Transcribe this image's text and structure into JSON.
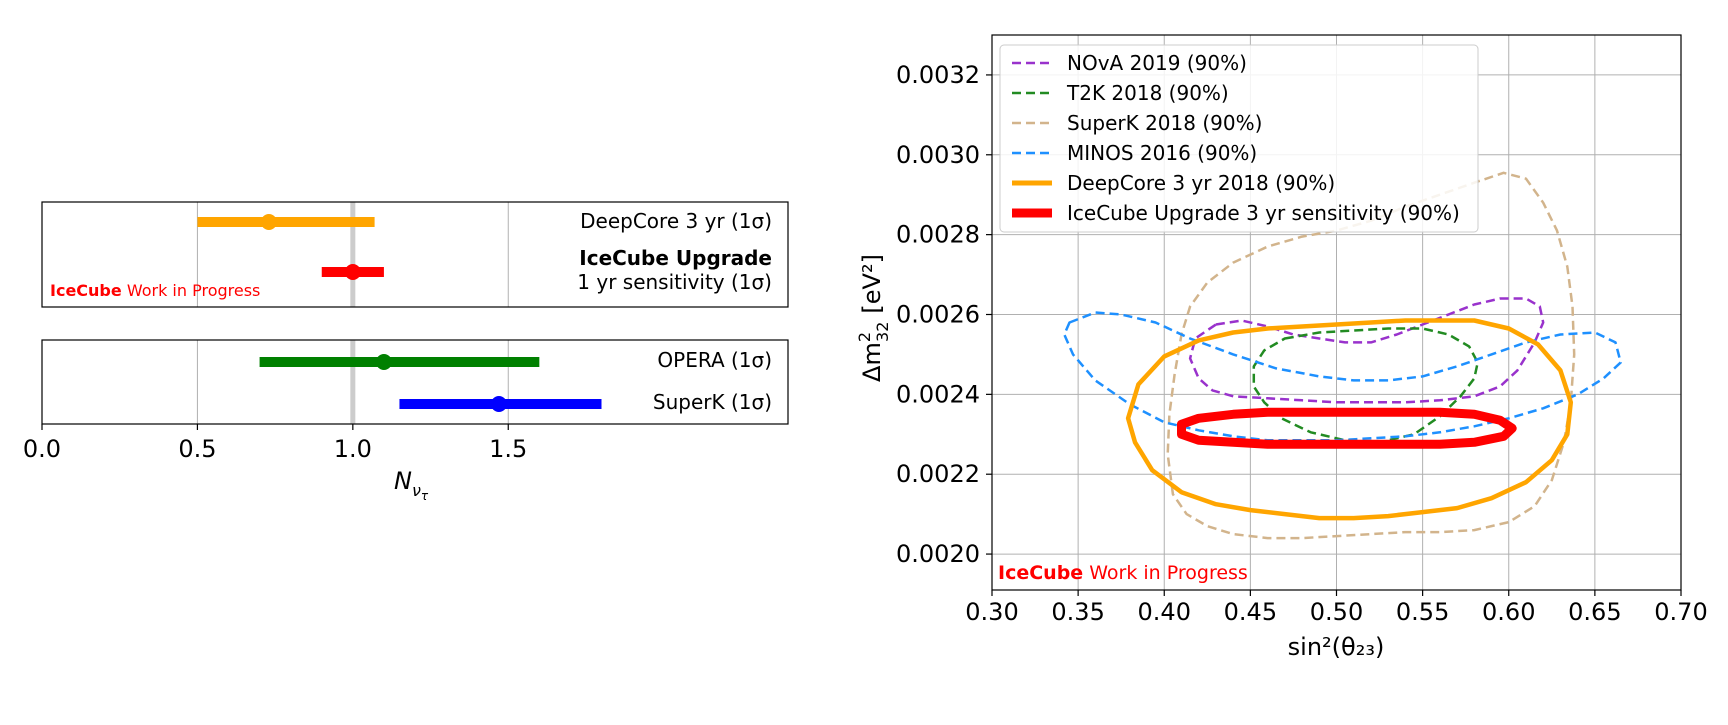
{
  "chart_data": [
    {
      "type": "interval",
      "xlabel_main": "N",
      "xlabel_sub": "ν",
      "xlabel_subsub": "τ",
      "xlim": [
        0.0,
        2.4
      ],
      "x_ticks": [
        {
          "value": 0.0,
          "label": "0.0"
        },
        {
          "value": 0.5,
          "label": "0.5"
        },
        {
          "value": 1.0,
          "label": "1.0"
        },
        {
          "value": 1.5,
          "label": "1.5"
        }
      ],
      "reference_value": 1.0,
      "annotation": {
        "brand": "IceCube",
        "text": " Work in Progress",
        "color": "#ff0000"
      },
      "panels": [
        {
          "entries": [
            {
              "label": "DeepCore 3 yr (1σ)",
              "center": 0.73,
              "low": 0.5,
              "high": 1.07,
              "color": "#ffa500"
            },
            {
              "label_bold": "IceCube Upgrade",
              "label": "1 yr sensitivity (1σ)",
              "center": 1.0,
              "low": 0.9,
              "high": 1.1,
              "color": "#ff0000"
            }
          ]
        },
        {
          "entries": [
            {
              "label": "OPERA (1σ)",
              "center": 1.1,
              "low": 0.7,
              "high": 1.6,
              "color": "#008000"
            },
            {
              "label": "SuperK (1σ)",
              "center": 1.47,
              "low": 1.15,
              "high": 1.8,
              "color": "#0000ff"
            }
          ]
        }
      ]
    },
    {
      "type": "contour",
      "xlabel": "sin²(θ₂₃)",
      "ylabel_main": "Δm",
      "ylabel_sub": "32",
      "ylabel_sup": "2",
      "ylabel_unit": "[eV²]",
      "xlim": [
        0.3,
        0.7
      ],
      "ylim": [
        0.00191,
        0.0033
      ],
      "x_ticks": [
        "0.30",
        "0.35",
        "0.40",
        "0.45",
        "0.50",
        "0.55",
        "0.60",
        "0.65",
        "0.70"
      ],
      "y_ticks": [
        "0.0020",
        "0.0022",
        "0.0024",
        "0.0026",
        "0.0028",
        "0.0030",
        "0.0032"
      ],
      "grid": true,
      "legend_position": "top-left",
      "annotation": {
        "brand": "IceCube",
        "text": " Work in Progress",
        "color": "#ff0000"
      },
      "series": [
        {
          "name": "NOvA 2019 (90%)",
          "color": "#9932cc",
          "dashed": true,
          "width": 2.5,
          "points": [
            [
              0.43,
              0.002575
            ],
            [
              0.445,
              0.002585
            ],
            [
              0.46,
              0.00257
            ],
            [
              0.475,
              0.00255
            ],
            [
              0.49,
              0.00254
            ],
            [
              0.505,
              0.00253
            ],
            [
              0.52,
              0.00253
            ],
            [
              0.535,
              0.00255
            ],
            [
              0.55,
              0.002575
            ],
            [
              0.565,
              0.0026
            ],
            [
              0.58,
              0.002625
            ],
            [
              0.595,
              0.00264
            ],
            [
              0.61,
              0.00264
            ],
            [
              0.618,
              0.00262
            ],
            [
              0.62,
              0.00258
            ],
            [
              0.615,
              0.00253
            ],
            [
              0.605,
              0.00246
            ],
            [
              0.595,
              0.00242
            ],
            [
              0.58,
              0.002395
            ],
            [
              0.56,
              0.002385
            ],
            [
              0.54,
              0.00238
            ],
            [
              0.52,
              0.00238
            ],
            [
              0.5,
              0.00238
            ],
            [
              0.48,
              0.002385
            ],
            [
              0.46,
              0.00239
            ],
            [
              0.44,
              0.002395
            ],
            [
              0.428,
              0.00241
            ],
            [
              0.42,
              0.00244
            ],
            [
              0.415,
              0.00249
            ],
            [
              0.418,
              0.00254
            ]
          ]
        },
        {
          "name": "T2K 2018 (90%)",
          "color": "#228b22",
          "dashed": true,
          "width": 2.5,
          "points": [
            [
              0.47,
              0.00254
            ],
            [
              0.49,
              0.002555
            ],
            [
              0.51,
              0.00256
            ],
            [
              0.53,
              0.002565
            ],
            [
              0.55,
              0.002565
            ],
            [
              0.565,
              0.00255
            ],
            [
              0.577,
              0.00252
            ],
            [
              0.582,
              0.00248
            ],
            [
              0.58,
              0.00244
            ],
            [
              0.572,
              0.002395
            ],
            [
              0.56,
              0.002345
            ],
            [
              0.545,
              0.0023
            ],
            [
              0.525,
              0.00228
            ],
            [
              0.505,
              0.002285
            ],
            [
              0.485,
              0.002305
            ],
            [
              0.468,
              0.00234
            ],
            [
              0.458,
              0.00238
            ],
            [
              0.452,
              0.00242
            ],
            [
              0.452,
              0.00247
            ],
            [
              0.458,
              0.00251
            ]
          ]
        },
        {
          "name": "SuperK 2018 (90%)",
          "color": "#d2b48c",
          "dashed": true,
          "width": 2.5,
          "points": [
            [
              0.405,
              0.00215
            ],
            [
              0.402,
              0.00225
            ],
            [
              0.403,
              0.00235
            ],
            [
              0.406,
              0.00245
            ],
            [
              0.41,
              0.00255
            ],
            [
              0.415,
              0.00262
            ],
            [
              0.425,
              0.00268
            ],
            [
              0.44,
              0.00273
            ],
            [
              0.46,
              0.00277
            ],
            [
              0.48,
              0.002795
            ],
            [
              0.5,
              0.00281
            ],
            [
              0.52,
              0.002835
            ],
            [
              0.54,
              0.00287
            ],
            [
              0.56,
              0.0029
            ],
            [
              0.58,
              0.00293
            ],
            [
              0.597,
              0.002955
            ],
            [
              0.61,
              0.00294
            ],
            [
              0.62,
              0.00288
            ],
            [
              0.628,
              0.00281
            ],
            [
              0.634,
              0.00272
            ],
            [
              0.637,
              0.00262
            ],
            [
              0.638,
              0.0025
            ],
            [
              0.636,
              0.00238
            ],
            [
              0.632,
              0.00228
            ],
            [
              0.625,
              0.002185
            ],
            [
              0.615,
              0.00212
            ],
            [
              0.6,
              0.00208
            ],
            [
              0.58,
              0.00206
            ],
            [
              0.56,
              0.002055
            ],
            [
              0.54,
              0.002055
            ],
            [
              0.52,
              0.00205
            ],
            [
              0.5,
              0.002045
            ],
            [
              0.48,
              0.00204
            ],
            [
              0.46,
              0.00204
            ],
            [
              0.44,
              0.00205
            ],
            [
              0.425,
              0.00207
            ],
            [
              0.413,
              0.0021
            ]
          ]
        },
        {
          "name": "MINOS 2016 (90%)",
          "color": "#1e90ff",
          "dashed": true,
          "width": 2.5,
          "points": [
            [
              0.345,
              0.00258
            ],
            [
              0.36,
              0.002605
            ],
            [
              0.375,
              0.0026
            ],
            [
              0.395,
              0.00258
            ],
            [
              0.415,
              0.00254
            ],
            [
              0.44,
              0.0025
            ],
            [
              0.465,
              0.002465
            ],
            [
              0.49,
              0.002445
            ],
            [
              0.51,
              0.002435
            ],
            [
              0.53,
              0.002435
            ],
            [
              0.55,
              0.002445
            ],
            [
              0.57,
              0.00247
            ],
            [
              0.59,
              0.0025
            ],
            [
              0.61,
              0.00253
            ],
            [
              0.63,
              0.00255
            ],
            [
              0.65,
              0.002555
            ],
            [
              0.662,
              0.00253
            ],
            [
              0.665,
              0.00248
            ],
            [
              0.655,
              0.00244
            ],
            [
              0.64,
              0.0024
            ],
            [
              0.62,
              0.002365
            ],
            [
              0.6,
              0.00234
            ],
            [
              0.58,
              0.00232
            ],
            [
              0.56,
              0.002305
            ],
            [
              0.54,
              0.002295
            ],
            [
              0.52,
              0.00229
            ],
            [
              0.5,
              0.002285
            ],
            [
              0.48,
              0.002285
            ],
            [
              0.46,
              0.002285
            ],
            [
              0.44,
              0.002295
            ],
            [
              0.42,
              0.00231
            ],
            [
              0.4,
              0.00233
            ],
            [
              0.38,
              0.002375
            ],
            [
              0.36,
              0.002435
            ],
            [
              0.347,
              0.0025
            ],
            [
              0.342,
              0.00255
            ]
          ]
        },
        {
          "name": "DeepCore 3 yr 2018 (90%)",
          "color": "#ffa500",
          "dashed": false,
          "width": 4.5,
          "points": [
            [
              0.385,
              0.002425
            ],
            [
              0.4,
              0.002495
            ],
            [
              0.42,
              0.002535
            ],
            [
              0.44,
              0.002555
            ],
            [
              0.46,
              0.002565
            ],
            [
              0.48,
              0.00257
            ],
            [
              0.5,
              0.002575
            ],
            [
              0.52,
              0.00258
            ],
            [
              0.54,
              0.002585
            ],
            [
              0.56,
              0.002585
            ],
            [
              0.58,
              0.002585
            ],
            [
              0.6,
              0.002565
            ],
            [
              0.617,
              0.002525
            ],
            [
              0.63,
              0.00246
            ],
            [
              0.636,
              0.00238
            ],
            [
              0.634,
              0.0023
            ],
            [
              0.625,
              0.002235
            ],
            [
              0.61,
              0.00218
            ],
            [
              0.59,
              0.00214
            ],
            [
              0.57,
              0.002115
            ],
            [
              0.55,
              0.002105
            ],
            [
              0.53,
              0.002095
            ],
            [
              0.51,
              0.00209
            ],
            [
              0.49,
              0.00209
            ],
            [
              0.47,
              0.0021
            ],
            [
              0.45,
              0.00211
            ],
            [
              0.43,
              0.002125
            ],
            [
              0.41,
              0.002155
            ],
            [
              0.393,
              0.00221
            ],
            [
              0.383,
              0.00228
            ],
            [
              0.379,
              0.00234
            ]
          ]
        },
        {
          "name": "IceCube Upgrade 3 yr sensitivity (90%)",
          "color": "#ff0000",
          "dashed": false,
          "width": 9,
          "points": [
            [
              0.42,
              0.00234
            ],
            [
              0.44,
              0.00235
            ],
            [
              0.46,
              0.002355
            ],
            [
              0.48,
              0.002355
            ],
            [
              0.5,
              0.002355
            ],
            [
              0.52,
              0.002355
            ],
            [
              0.54,
              0.002355
            ],
            [
              0.56,
              0.002355
            ],
            [
              0.58,
              0.00235
            ],
            [
              0.595,
              0.002335
            ],
            [
              0.602,
              0.002315
            ],
            [
              0.597,
              0.002295
            ],
            [
              0.58,
              0.00228
            ],
            [
              0.56,
              0.002275
            ],
            [
              0.54,
              0.002275
            ],
            [
              0.52,
              0.002275
            ],
            [
              0.5,
              0.002275
            ],
            [
              0.48,
              0.002275
            ],
            [
              0.46,
              0.002275
            ],
            [
              0.44,
              0.00228
            ],
            [
              0.42,
              0.002285
            ],
            [
              0.41,
              0.0023
            ],
            [
              0.41,
              0.002325
            ]
          ]
        }
      ]
    }
  ]
}
